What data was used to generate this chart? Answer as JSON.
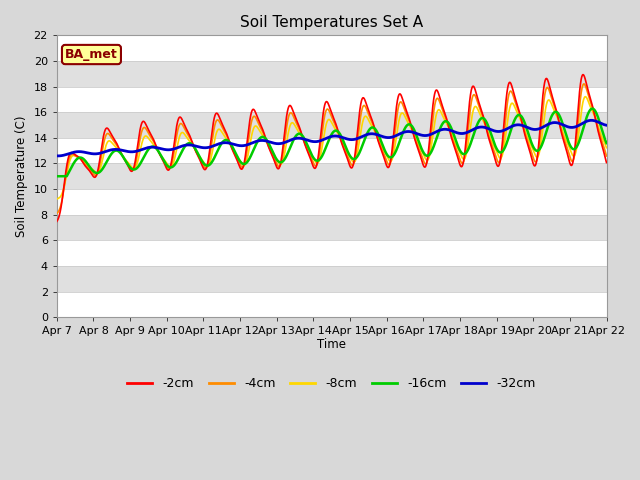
{
  "title": "Soil Temperatures Set A",
  "ylabel": "Soil Temperature (C)",
  "xlabel": "Time",
  "ylim": [
    0,
    22
  ],
  "annotation": "BA_met",
  "line_colors": {
    "-2cm": "#FF0000",
    "-4cm": "#FF8C00",
    "-8cm": "#FFD700",
    "-16cm": "#00CC00",
    "-32cm": "#0000CC"
  },
  "background_color": "#D8D8D8",
  "plot_bg_color": "#E8E8E8",
  "tick_labels": [
    "Apr 7",
    "Apr 8",
    "Apr 9",
    "Apr 10",
    "Apr 11",
    "Apr 12",
    "Apr 13",
    "Apr 14",
    "Apr 15",
    "Apr 16",
    "Apr 17",
    "Apr 18",
    "Apr 19",
    "Apr 20",
    "Apr 21",
    "Apr 22"
  ],
  "tick_positions": [
    0,
    1,
    2,
    3,
    4,
    5,
    6,
    7,
    8,
    9,
    10,
    11,
    12,
    13,
    14,
    15
  ]
}
